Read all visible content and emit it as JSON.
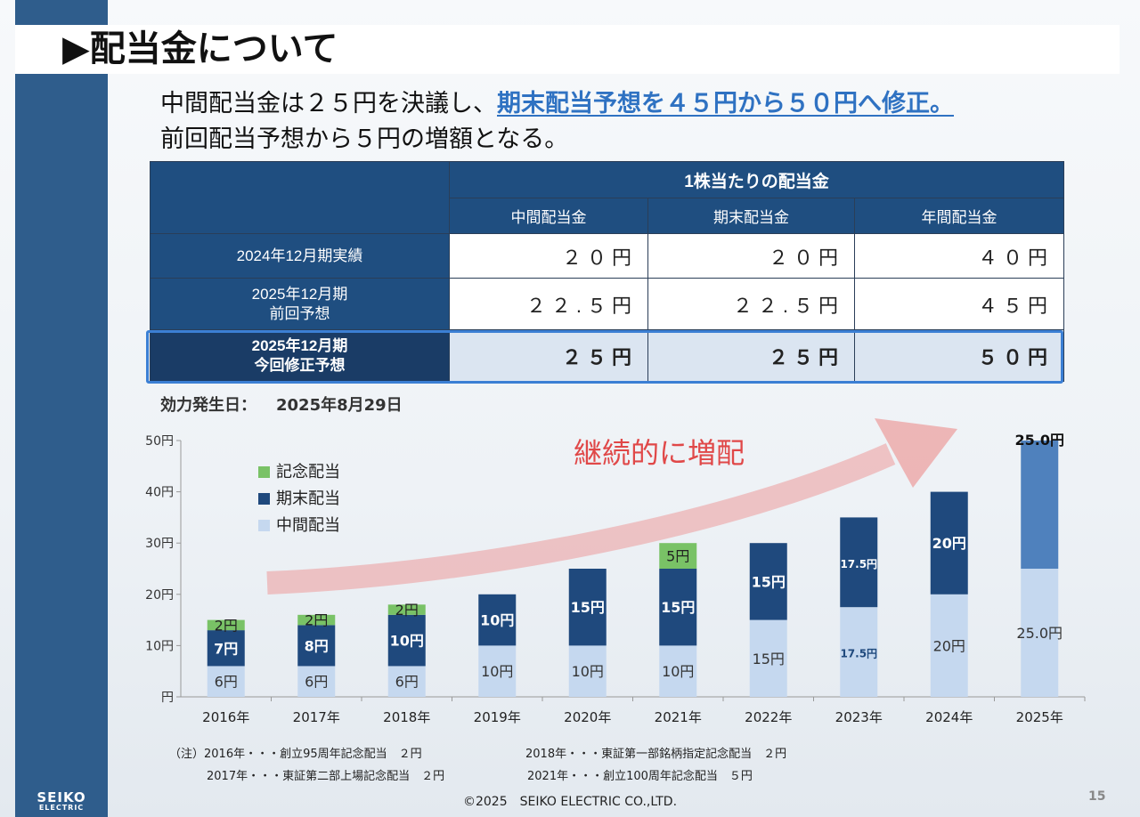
{
  "title": "▶配当金について",
  "lead": {
    "line1_prefix": "中間配当金は２５円を決議し、",
    "line1_highlight": "期末配当予想を４５円から５０円へ修正。",
    "line2": "前回配当予想から５円の増額となる。"
  },
  "dividend_table": {
    "group_header": "1株当たりの配当金",
    "columns": [
      "中間配当金",
      "期末配当金",
      "年間配当金"
    ],
    "rows": [
      {
        "label": "2024年12月期実績",
        "values": [
          "２０円",
          "２０円",
          "４０円"
        ]
      },
      {
        "label_line1": "2025年12月期",
        "label_line2": "前回予想",
        "values": [
          "２２.５円",
          "２２.５円",
          "４５円"
        ]
      },
      {
        "label_line1": "2025年12月期",
        "label_line2": "今回修正予想",
        "values": [
          "２５円",
          "２５円",
          "５０円"
        ]
      }
    ]
  },
  "effective_date": {
    "label": "効力発生日：",
    "value": "2025年8月29日"
  },
  "arrow_caption": "継続的に増配",
  "chart_data": {
    "type": "bar",
    "stacked": true,
    "categories": [
      "2016年",
      "2017年",
      "2018年",
      "2019年",
      "2020年",
      "2021年",
      "2022年",
      "2023年",
      "2024年",
      "2025年"
    ],
    "ylim": [
      0,
      50
    ],
    "y_ticks": [
      0,
      10,
      20,
      30,
      40,
      50
    ],
    "y_tick_labels": [
      "円",
      "10円",
      "20円",
      "30円",
      "40円",
      "50円"
    ],
    "legend_position": "top-left",
    "grid": false,
    "series": [
      {
        "name": "中間配当",
        "color": "#c5d8ef",
        "values": [
          6,
          6,
          6,
          10,
          10,
          10,
          15,
          17.5,
          20,
          25
        ],
        "labels": [
          "6円",
          "6円",
          "6円",
          "10円",
          "10円",
          "10円",
          "15円",
          "17.5円",
          "20円",
          "25.0円"
        ]
      },
      {
        "name": "期末配当",
        "color": "#1f497d",
        "values": [
          7,
          8,
          10,
          10,
          15,
          15,
          15,
          17.5,
          20,
          25
        ],
        "labels": [
          "7円",
          "8円",
          "10円",
          "10円",
          "15円",
          "15円",
          "15円",
          "17.5円",
          "20円",
          "25.0円"
        ]
      },
      {
        "name": "記念配当",
        "color": "#79c266",
        "values": [
          2,
          2,
          2,
          0,
          0,
          5,
          0,
          0,
          0,
          0
        ],
        "labels": [
          "2円",
          "2円",
          "2円",
          "",
          "",
          "5円",
          "",
          "",
          "",
          ""
        ]
      }
    ],
    "last_bar_top_color": "#4f81bd"
  },
  "notes": [
    "（注）2016年・・・創立95周年記念配当　２円",
    "2018年・・・東証第一部銘柄指定記念配当　２円",
    "2017年・・・東証第二部上場記念配当　２円",
    "2021年・・・創立100周年記念配当　５円"
  ],
  "footer": "©2025　SEIKO ELECTRIC CO.,LTD.",
  "page_number": "15",
  "logo": {
    "line1": "SEIKO",
    "line2": "ELECTRIC"
  }
}
